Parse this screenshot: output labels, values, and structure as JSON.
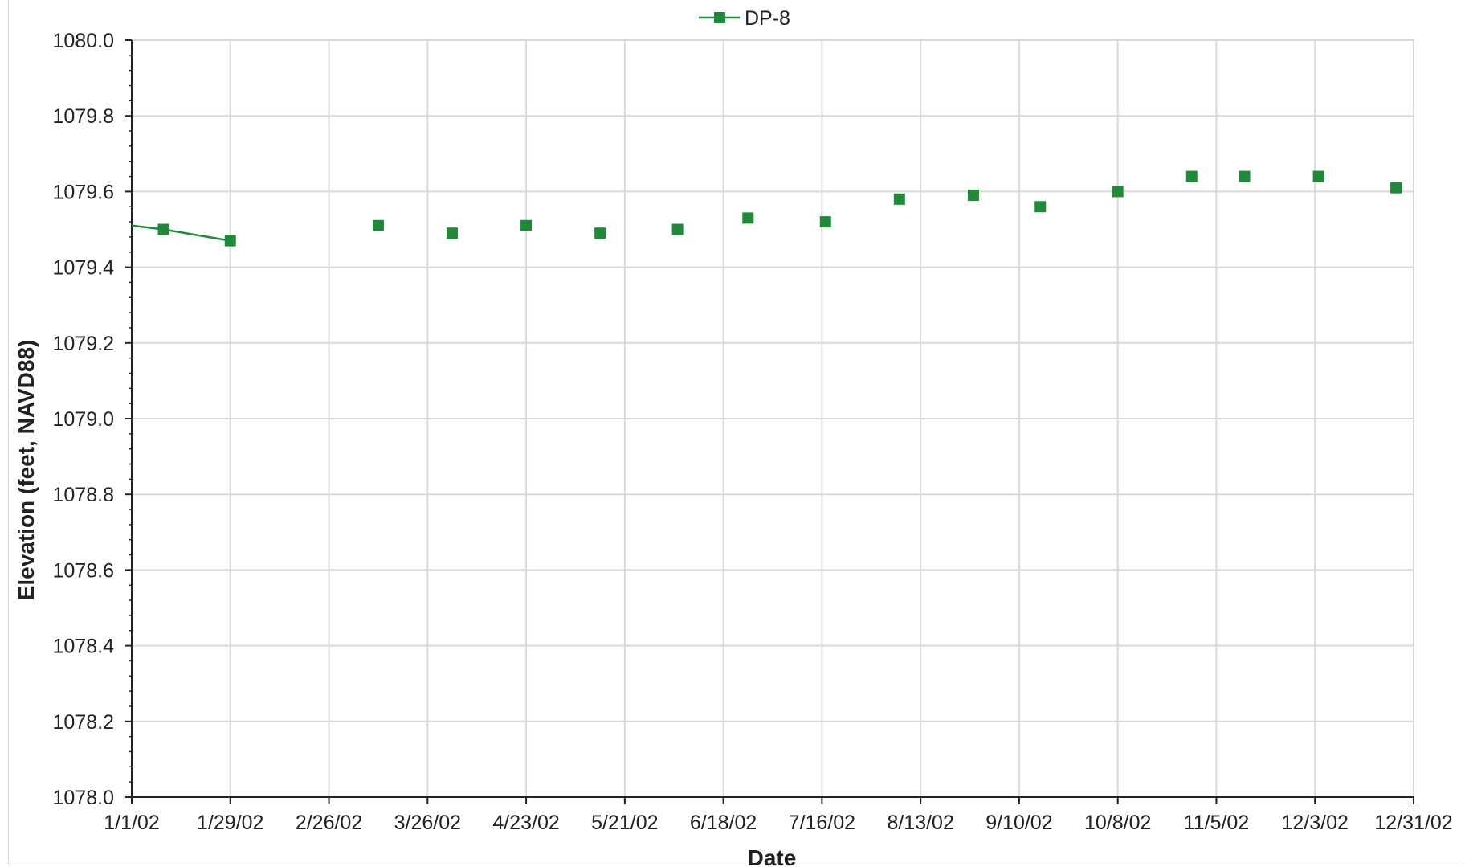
{
  "chart_data": {
    "type": "line",
    "xlabel": "Date",
    "ylabel": "Elevation (feet, NAVD88)",
    "ylim": [
      1078.0,
      1080.0
    ],
    "y_ticks": [
      "1078.0",
      "1078.2",
      "1078.4",
      "1078.6",
      "1078.8",
      "1079.0",
      "1079.2",
      "1079.4",
      "1079.6",
      "1079.8",
      "1080.0"
    ],
    "x_ticks": [
      "1/1/02",
      "1/29/02",
      "2/26/02",
      "3/26/02",
      "4/23/02",
      "5/21/02",
      "6/18/02",
      "7/16/02",
      "8/13/02",
      "9/10/02",
      "10/8/02",
      "11/5/02",
      "12/3/02",
      "12/31/02"
    ],
    "xlim": [
      "1/1/02",
      "12/31/02"
    ],
    "grid": true,
    "legend_position": "top-center",
    "colors": {
      "series": "#1e8a3a",
      "grid": "#d9d9d9",
      "axis": "#222222"
    },
    "series": [
      {
        "name": "DP-8",
        "marker": "square",
        "points": [
          {
            "date": "1/1/02",
            "y": 1079.51
          },
          {
            "date": "1/10/02",
            "y": 1079.5
          },
          {
            "date": "1/29/02",
            "y": 1079.47
          },
          {
            "date": "3/12/02",
            "y": 1079.51
          },
          {
            "date": "4/2/02",
            "y": 1079.49
          },
          {
            "date": "4/23/02",
            "y": 1079.51
          },
          {
            "date": "5/14/02",
            "y": 1079.49
          },
          {
            "date": "6/5/02",
            "y": 1079.5
          },
          {
            "date": "6/25/02",
            "y": 1079.53
          },
          {
            "date": "7/17/02",
            "y": 1079.52
          },
          {
            "date": "8/7/02",
            "y": 1079.58
          },
          {
            "date": "8/28/02",
            "y": 1079.59
          },
          {
            "date": "9/16/02",
            "y": 1079.56
          },
          {
            "date": "10/8/02",
            "y": 1079.6
          },
          {
            "date": "10/29/02",
            "y": 1079.64
          },
          {
            "date": "11/13/02",
            "y": 1079.64
          },
          {
            "date": "12/4/02",
            "y": 1079.64
          },
          {
            "date": "12/26/02",
            "y": 1079.61
          }
        ],
        "connected_until": "1/29/02"
      }
    ]
  }
}
